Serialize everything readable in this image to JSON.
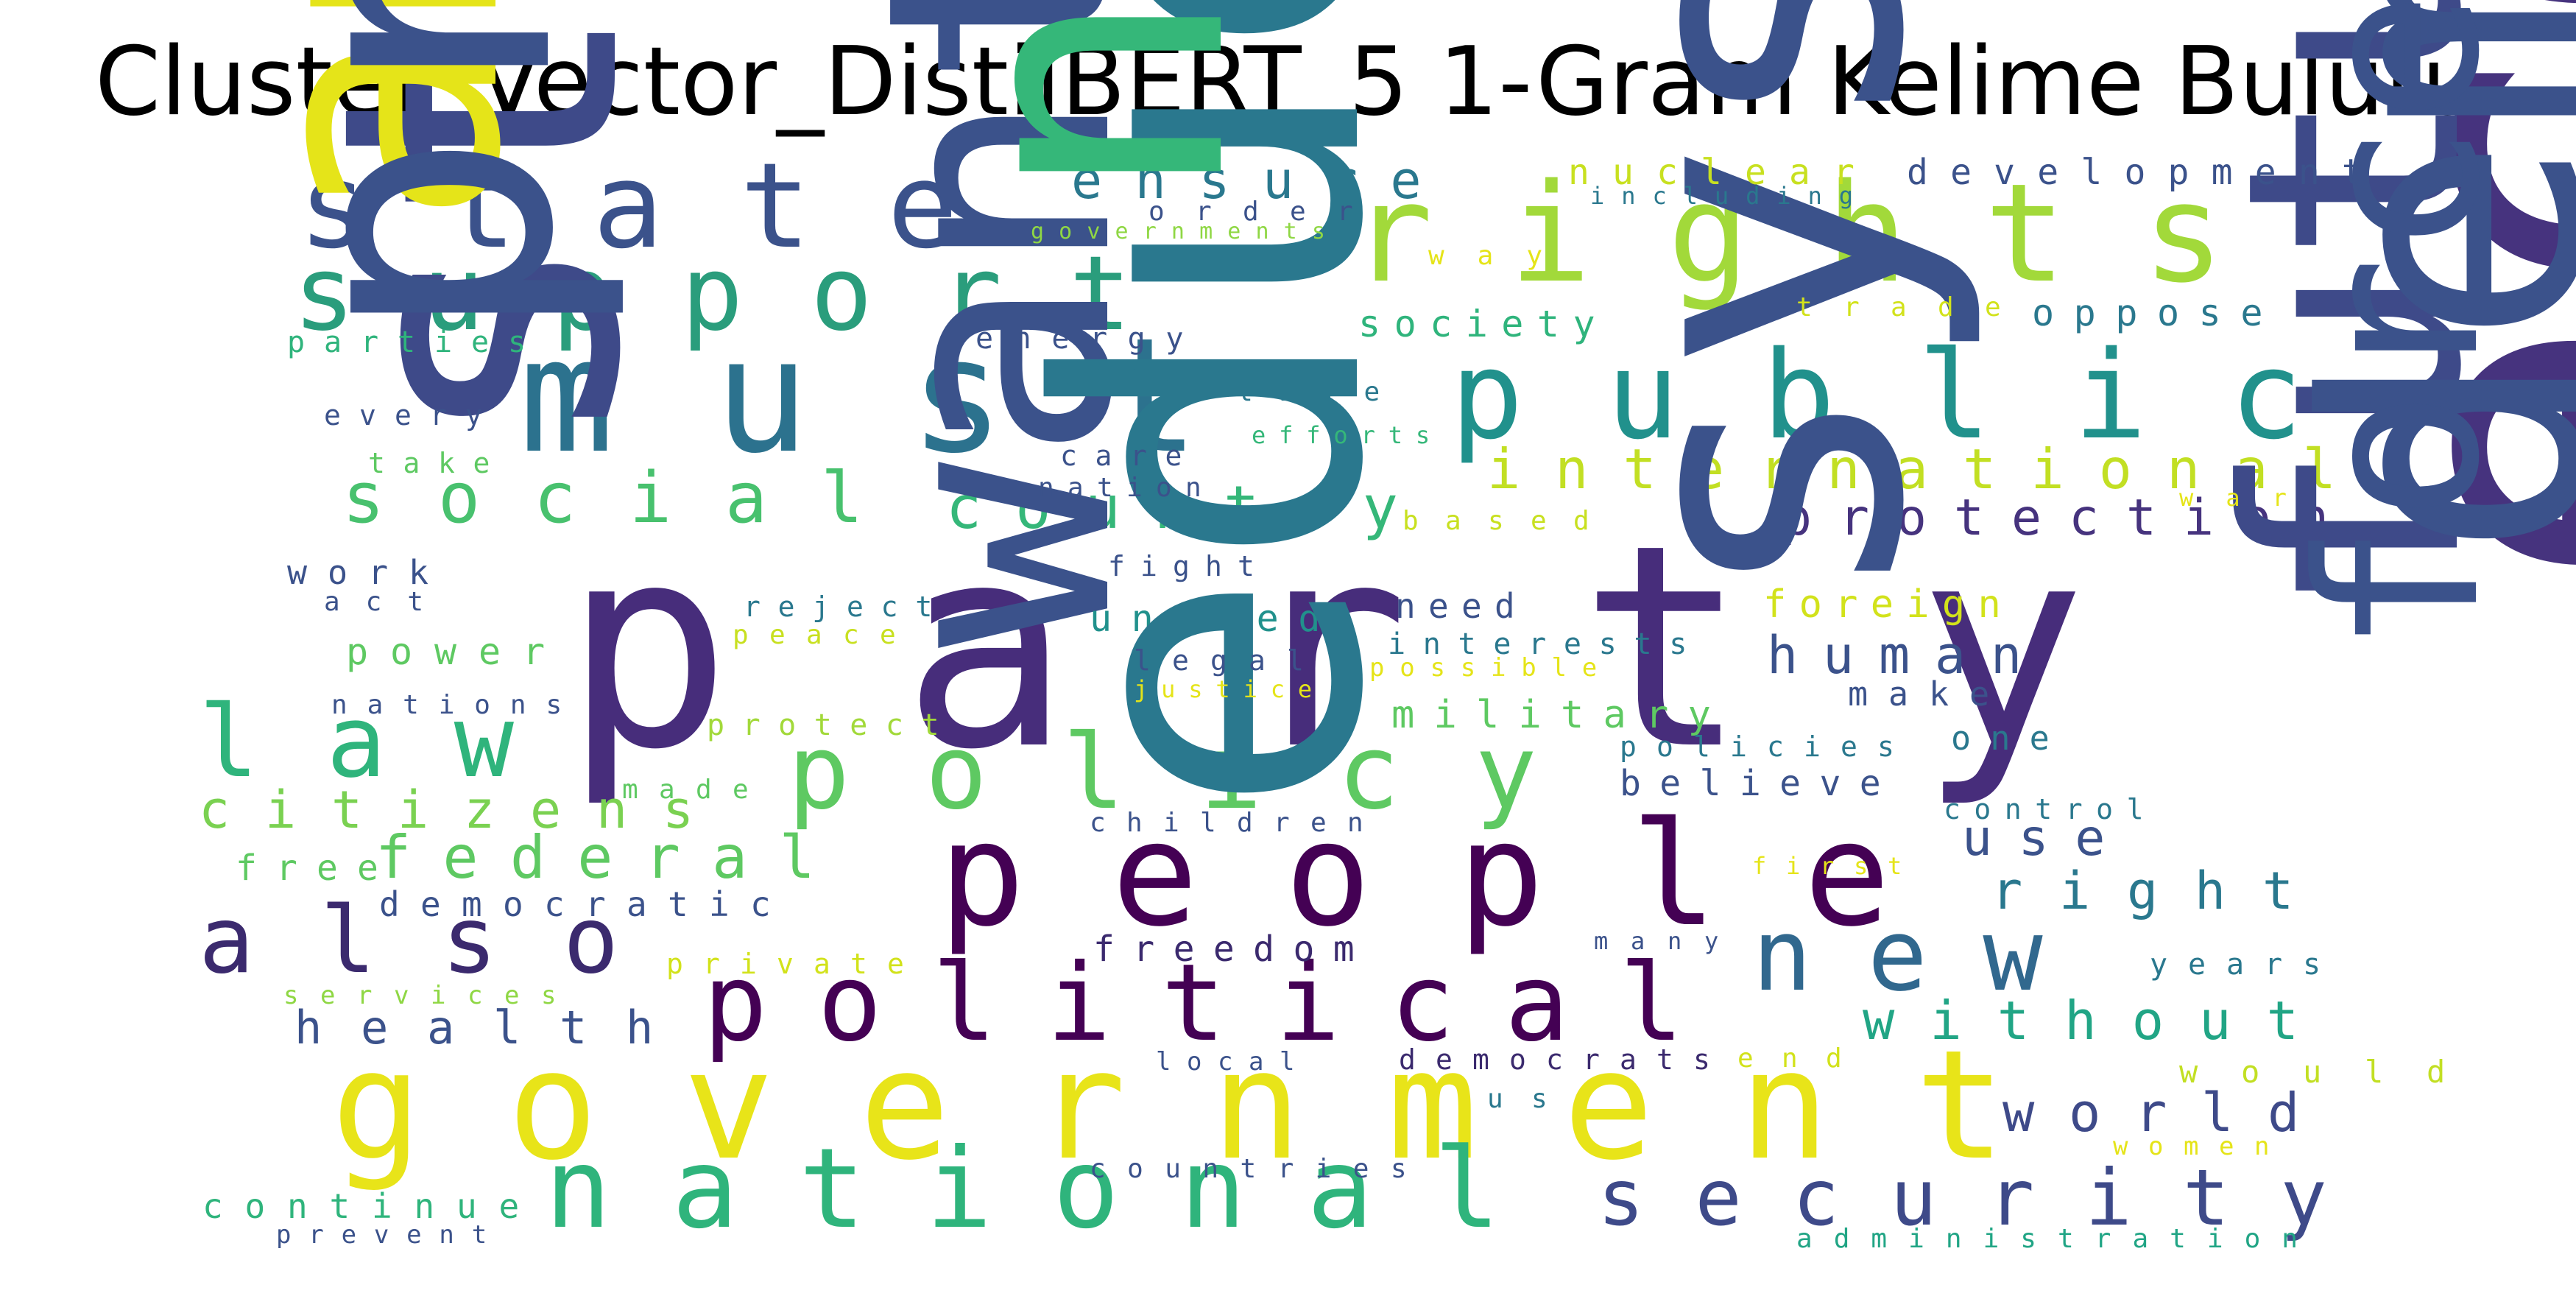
{
  "title": "Cluster_Vector_DistilBERT_5 1-Gram Kelime Bulutu",
  "colors": {
    "yellow": "#e8e81c",
    "lime": "#a2d93a",
    "green": "#5ec962",
    "teal_green": "#2fb47c",
    "teal": "#21918c",
    "blue_teal": "#2c728e",
    "blue": "#3b528b",
    "indigo": "#472d7b",
    "purple": "#44015a"
  },
  "words": [
    {
      "text": "party",
      "color": "#472d7b"
    },
    {
      "text": "must",
      "color": "#2c728e"
    },
    {
      "text": "people",
      "color": "#440154"
    },
    {
      "text": "government",
      "color": "#e8e419"
    },
    {
      "text": "rights",
      "color": "#a2d93a"
    },
    {
      "text": "public",
      "color": "#21918c"
    },
    {
      "text": "state",
      "color": "#3b528b"
    },
    {
      "text": "support",
      "color": "#2a9d7c"
    },
    {
      "text": "national",
      "color": "#2fb47c"
    },
    {
      "text": "political",
      "color": "#440154"
    },
    {
      "text": "policy",
      "color": "#5ec962"
    },
    {
      "text": "law",
      "color": "#2fb47c"
    },
    {
      "text": "also",
      "color": "#3b2a6e"
    },
    {
      "text": "new",
      "color": "#31688e"
    },
    {
      "text": "security",
      "color": "#3e4a89"
    },
    {
      "text": "social",
      "color": "#48c16e"
    },
    {
      "text": "country",
      "color": "#35b779"
    },
    {
      "text": "international",
      "color": "#c2df23"
    },
    {
      "text": "protection",
      "color": "#46337e"
    },
    {
      "text": "want",
      "color": "#3b528b"
    },
    {
      "text": "system",
      "color": "#3b528b"
    },
    {
      "text": "states",
      "color": "#3e4a89"
    },
    {
      "text": "citizens",
      "color": "#7ad151"
    },
    {
      "text": "federal",
      "color": "#5ec962"
    },
    {
      "text": "health",
      "color": "#3b528b"
    },
    {
      "text": "world",
      "color": "#3e4a89"
    },
    {
      "text": "without",
      "color": "#21a585"
    },
    {
      "text": "human",
      "color": "#3b528b"
    },
    {
      "text": "right",
      "color": "#2a788e"
    },
    {
      "text": "use",
      "color": "#3b528b"
    },
    {
      "text": "economic",
      "color": "#46337e"
    },
    {
      "text": "future",
      "color": "#3e4a89"
    },
    {
      "text": "ensure",
      "color": "#2a788e"
    },
    {
      "text": "development",
      "color": "#3b528b"
    },
    {
      "text": "nuclear",
      "color": "#c8e020"
    },
    {
      "text": "society",
      "color": "#2fb47c"
    },
    {
      "text": "oppose",
      "color": "#2a788e"
    },
    {
      "text": "united",
      "color": "#21918c"
    },
    {
      "text": "military",
      "color": "#5ec962"
    },
    {
      "text": "foreign",
      "color": "#d2e21b"
    },
    {
      "text": "believe",
      "color": "#3b528b"
    },
    {
      "text": "freedom",
      "color": "#3b2a6e"
    },
    {
      "text": "democratic",
      "color": "#3b528b"
    },
    {
      "text": "free",
      "color": "#5ec962"
    },
    {
      "text": "power",
      "color": "#5ec962"
    },
    {
      "text": "education",
      "color": "#2a788e"
    },
    {
      "text": "necessary",
      "color": "#35b779"
    },
    {
      "text": "american",
      "color": "#e5e419"
    },
    {
      "text": "president",
      "color": "#3b528b"
    },
    {
      "text": "continue",
      "color": "#2fb47c"
    },
    {
      "text": "need",
      "color": "#3b528b"
    },
    {
      "text": "interests",
      "color": "#2a788e"
    },
    {
      "text": "make",
      "color": "#3b528b"
    },
    {
      "text": "one",
      "color": "#2a788e"
    },
    {
      "text": "democracy",
      "color": "#3b528b"
    },
    {
      "text": "forces",
      "color": "#3b528b"
    },
    {
      "text": "would",
      "color": "#c2df23"
    },
    {
      "text": "years",
      "color": "#2a788e"
    },
    {
      "text": "control",
      "color": "#2a788e"
    },
    {
      "text": "policies",
      "color": "#2a788e"
    },
    {
      "text": "work",
      "color": "#3b528b"
    },
    {
      "text": "parties",
      "color": "#2fb47c"
    },
    {
      "text": "every",
      "color": "#3b528b"
    },
    {
      "text": "take",
      "color": "#5ec962"
    },
    {
      "text": "act",
      "color": "#3b528b"
    },
    {
      "text": "nations",
      "color": "#3b528b"
    },
    {
      "text": "protect",
      "color": "#a2d93a"
    },
    {
      "text": "made",
      "color": "#5ec962"
    },
    {
      "text": "private",
      "color": "#d2e21b"
    },
    {
      "text": "services",
      "color": "#8fd744"
    },
    {
      "text": "reject",
      "color": "#2a788e"
    },
    {
      "text": "peace",
      "color": "#c8e020"
    },
    {
      "text": "legal",
      "color": "#3b528b"
    },
    {
      "text": "justice",
      "color": "#e5e419"
    },
    {
      "text": "children",
      "color": "#3b528b"
    },
    {
      "text": "fight",
      "color": "#3b528b"
    },
    {
      "text": "based",
      "color": "#c8e020"
    },
    {
      "text": "possible",
      "color": "#e5e419"
    },
    {
      "text": "energy",
      "color": "#3b528b"
    },
    {
      "text": "time",
      "color": "#2a788e"
    },
    {
      "text": "life",
      "color": "#2a788e"
    },
    {
      "text": "care",
      "color": "#3b528b"
    },
    {
      "text": "efforts",
      "color": "#35b779"
    },
    {
      "text": "nation",
      "color": "#3b528b"
    },
    {
      "text": "order",
      "color": "#3b528b"
    },
    {
      "text": "governments",
      "color": "#8fd744"
    },
    {
      "text": "including",
      "color": "#2a788e"
    },
    {
      "text": "way",
      "color": "#e5e419"
    },
    {
      "text": "trade",
      "color": "#d2e21b"
    },
    {
      "text": "war",
      "color": "#e5e419"
    },
    {
      "text": "first",
      "color": "#e5e419"
    },
    {
      "text": "many",
      "color": "#3b528b"
    },
    {
      "text": "end",
      "color": "#d2e21b"
    },
    {
      "text": "us",
      "color": "#2a788e"
    },
    {
      "text": "local",
      "color": "#3b528b"
    },
    {
      "text": "democrats",
      "color": "#3b2a6e"
    },
    {
      "text": "countries",
      "color": "#3b528b"
    },
    {
      "text": "women",
      "color": "#e5e419"
    },
    {
      "text": "administration",
      "color": "#21a585"
    },
    {
      "text": "prevent",
      "color": "#3b528b"
    }
  ]
}
